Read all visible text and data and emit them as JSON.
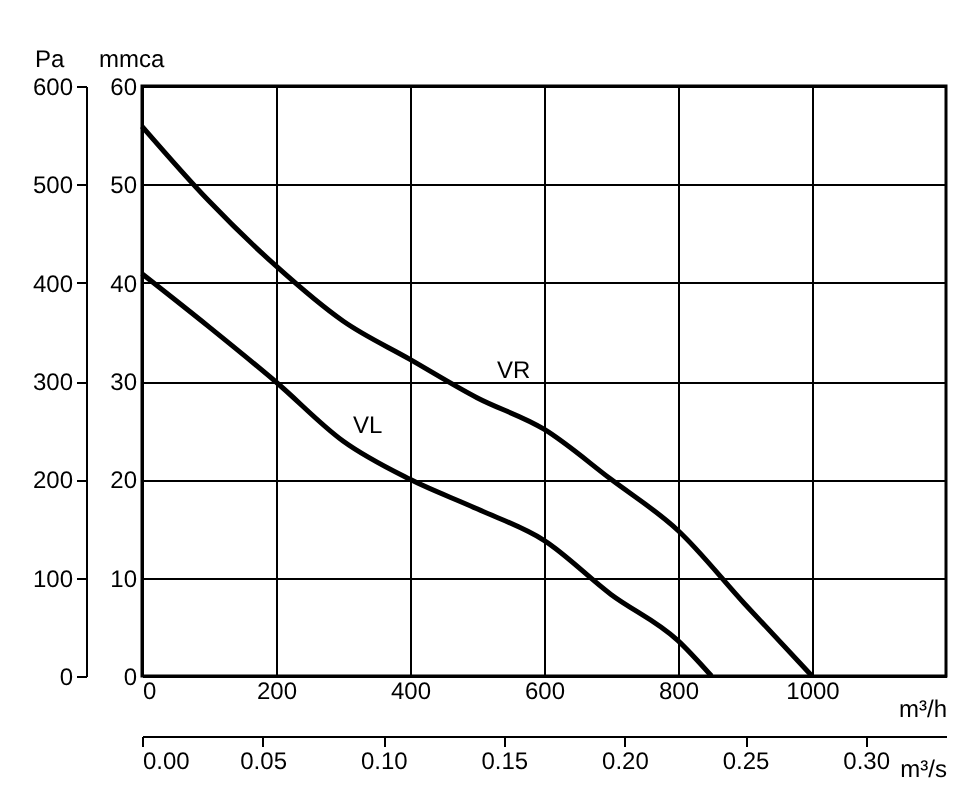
{
  "chart_data": {
    "type": "line",
    "xlabel": "m³/h",
    "x2label": "m³/s",
    "ylabel": "Pa",
    "y2label": "mmca",
    "xlim": [
      0,
      1200
    ],
    "xticks": [
      0,
      200,
      400,
      600,
      800,
      1000
    ],
    "x2lim": [
      0,
      0.3333
    ],
    "x2ticks": [
      {
        "value": 0,
        "label": "0.00"
      },
      {
        "value": 0.05,
        "label": "0.05"
      },
      {
        "value": 0.1,
        "label": "0.10"
      },
      {
        "value": 0.15,
        "label": "0.15"
      },
      {
        "value": 0.2,
        "label": "0.20"
      },
      {
        "value": 0.25,
        "label": "0.25"
      },
      {
        "value": 0.3,
        "label": "0.30"
      }
    ],
    "ylim": [
      0,
      600
    ],
    "yticks": [
      0,
      100,
      200,
      300,
      400,
      500,
      600
    ],
    "y2lim": [
      0,
      60
    ],
    "y2ticks": [
      0,
      10,
      20,
      30,
      40,
      50,
      60
    ],
    "grid": true,
    "line_style": "solid",
    "series": [
      {
        "name": "VR",
        "color": "#000000",
        "x": [
          0,
          100,
          200,
          300,
          400,
          500,
          600,
          700,
          800,
          900,
          1000
        ],
        "values": [
          559,
          483,
          417,
          361,
          322,
          283,
          251,
          200,
          148,
          73,
          0
        ]
      },
      {
        "name": "VL",
        "color": "#000000",
        "x": [
          0,
          100,
          200,
          300,
          400,
          500,
          600,
          700,
          800,
          850
        ],
        "values": [
          409,
          355,
          299,
          239,
          200,
          170,
          138,
          83,
          36,
          0
        ]
      }
    ]
  }
}
